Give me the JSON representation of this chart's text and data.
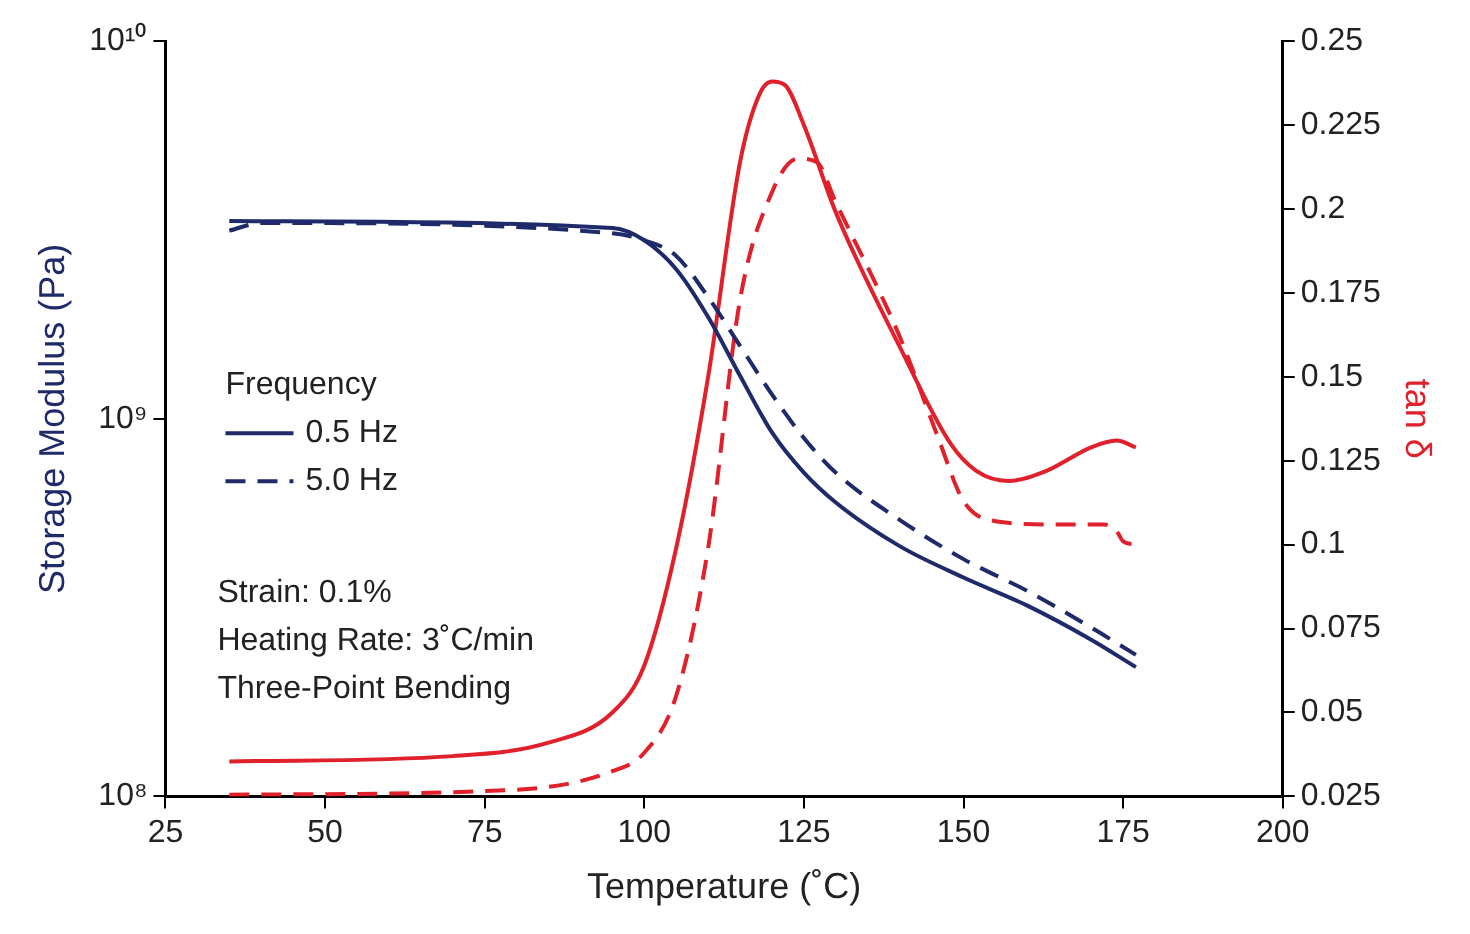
{
  "chart_data": {
    "type": "line",
    "xlabel": "Temperature (˚C)",
    "ylabel": "Storage Modulus (Pa)",
    "y2label": "tan δ",
    "legend_title": "Frequency",
    "legend": "left",
    "log": "y",
    "grid": false,
    "marker": "none",
    "xlim": [
      25,
      200
    ],
    "xticks": [
      25,
      50,
      75,
      100,
      125,
      150,
      175,
      200
    ],
    "ylim": [
      100000000,
      10000000000
    ],
    "yticks": [
      {
        "value": 100000000,
        "label": "10⁸"
      },
      {
        "value": 1000000000,
        "label": "10⁹"
      },
      {
        "value": 10000000000,
        "label": "10¹⁰"
      }
    ],
    "y2lim": [
      0.025,
      0.25
    ],
    "y2ticks": [
      0.025,
      0.05,
      0.075,
      0.1,
      0.125,
      0.15,
      0.175,
      0.2,
      0.225,
      0.25
    ],
    "series": [
      {
        "name": "0.5 Hz",
        "color": "#1f2a6b",
        "line_style": "solid",
        "x": [
          35,
          95,
          100,
          105,
          110,
          115,
          120,
          125,
          130,
          140,
          150,
          160,
          170,
          177
        ],
        "values": [
          3340000000,
          3200000000,
          2970000000,
          2490000000,
          1860000000,
          1300000000,
          920000000,
          720000000,
          600000000,
          460000000,
          380000000,
          320000000,
          260000000,
          220000000
        ]
      },
      {
        "name": "5.0 Hz",
        "color": "#1f2a6b",
        "line_style": "dashed",
        "x": [
          35,
          40,
          95,
          100,
          105,
          110,
          115,
          120,
          125,
          130,
          140,
          150,
          160,
          170,
          177
        ],
        "values": [
          3150000000,
          3300000000,
          3100000000,
          2970000000,
          2700000000,
          2100000000,
          1560000000,
          1160000000,
          890000000,
          720000000,
          540000000,
          425000000,
          350000000,
          280000000,
          237000000
        ]
      },
      {
        "color": "#e0202a",
        "axis": "y2",
        "line_style": "solid",
        "x": [
          35,
          70,
          85,
          95,
          100,
          105,
          110,
          115,
          118,
          120,
          122,
          125,
          130,
          140,
          148,
          152,
          157,
          163,
          170,
          174,
          177
        ],
        "values": [
          0.0354,
          0.037,
          0.041,
          0.05,
          0.064,
          0.099,
          0.15,
          0.214,
          0.234,
          0.238,
          0.237,
          0.225,
          0.199,
          0.159,
          0.13,
          0.122,
          0.119,
          0.122,
          0.129,
          0.131,
          0.129
        ]
      },
      {
        "color": "#e0202a",
        "axis": "y2",
        "line_style": "dashed",
        "x": [
          35,
          80,
          95,
          100,
          105,
          110,
          115,
          120,
          124,
          127,
          130,
          140,
          146,
          150,
          155,
          165,
          172,
          174,
          175,
          177
        ],
        "values": [
          0.0255,
          0.027,
          0.0325,
          0.038,
          0.055,
          0.099,
          0.173,
          0.205,
          0.215,
          0.214,
          0.202,
          0.162,
          0.132,
          0.113,
          0.107,
          0.106,
          0.106,
          0.104,
          0.101,
          0.1
        ]
      }
    ],
    "annotations": [
      "Strain: 0.1%",
      "Heating Rate: 3˚C/min",
      "Three-Point Bending"
    ]
  }
}
